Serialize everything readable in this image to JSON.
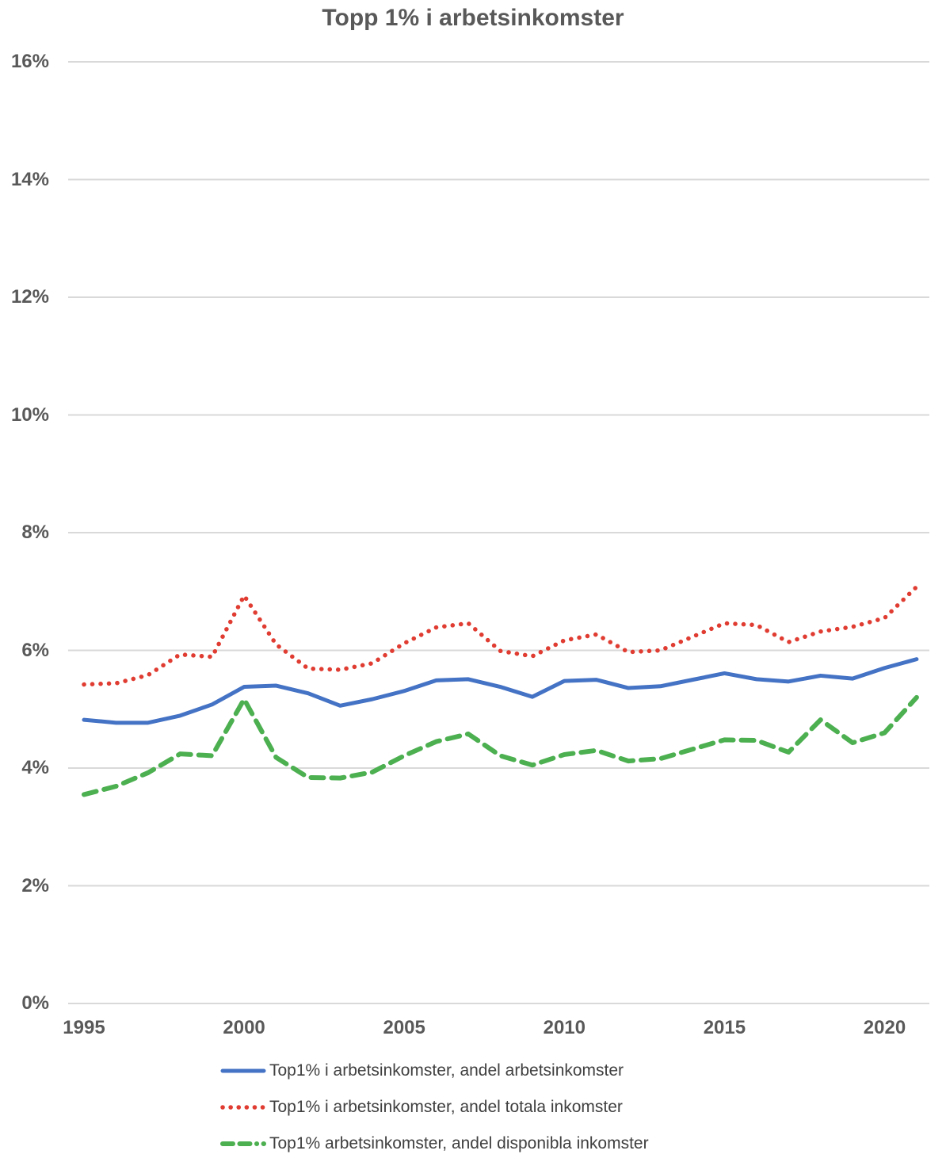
{
  "title": "Topp 1% i arbetsinkomster",
  "colors": {
    "series_blue": "#4472C4",
    "series_red": "#E03C31",
    "series_green": "#4CAF50",
    "grid": "#D9D9D9",
    "axis_text": "#595959",
    "legend_text": "#404040"
  },
  "chart_data": {
    "type": "line",
    "title": "Topp 1% i arbetsinkomster",
    "xlabel": "",
    "ylabel": "",
    "unit": "%",
    "xlim": [
      1995,
      2021
    ],
    "ylim": [
      0,
      16
    ],
    "grid": "horizontal",
    "legend_position": "bottom-left",
    "x": [
      1995,
      1996,
      1997,
      1998,
      1999,
      2000,
      2001,
      2002,
      2003,
      2004,
      2005,
      2006,
      2007,
      2008,
      2009,
      2010,
      2011,
      2012,
      2013,
      2014,
      2015,
      2016,
      2017,
      2018,
      2019,
      2020,
      2021
    ],
    "x_ticks": [
      {
        "label": "1995",
        "value": 1995
      },
      {
        "label": "2000",
        "value": 2000
      },
      {
        "label": "2005",
        "value": 2005
      },
      {
        "label": "2010",
        "value": 2010
      },
      {
        "label": "2015",
        "value": 2015
      },
      {
        "label": "2020",
        "value": 2020
      }
    ],
    "y_ticks": [
      {
        "label": "0%",
        "value": 0
      },
      {
        "label": "2%",
        "value": 2
      },
      {
        "label": "4%",
        "value": 4
      },
      {
        "label": "6%",
        "value": 6
      },
      {
        "label": "8%",
        "value": 8
      },
      {
        "label": "10%",
        "value": 10
      },
      {
        "label": "12%",
        "value": 12
      },
      {
        "label": "14%",
        "value": 14
      },
      {
        "label": "16%",
        "value": 16
      }
    ],
    "series": [
      {
        "name": "Top1% i arbetsinkomster, andel arbetsinkomster",
        "color": "#4472C4",
        "style": "solid",
        "values": [
          4.82,
          4.77,
          4.77,
          4.89,
          5.08,
          5.38,
          5.4,
          5.27,
          5.06,
          5.17,
          5.31,
          5.49,
          5.51,
          5.38,
          5.21,
          5.48,
          5.5,
          5.36,
          5.39,
          5.5,
          5.61,
          5.51,
          5.47,
          5.57,
          5.52,
          5.7,
          5.85
        ]
      },
      {
        "name": "Top1% i arbetsinkomster, andel totala inkomster",
        "color": "#E03C31",
        "style": "dotted",
        "values": [
          5.42,
          5.44,
          5.58,
          5.93,
          5.89,
          6.93,
          6.1,
          5.69,
          5.67,
          5.78,
          6.12,
          6.39,
          6.46,
          5.99,
          5.9,
          6.17,
          6.27,
          5.97,
          6.0,
          6.23,
          6.46,
          6.43,
          6.14,
          6.32,
          6.4,
          6.55,
          7.08
        ]
      },
      {
        "name": "Top1% arbetsinkomster, andel disponibla inkomster",
        "color": "#4CAF50",
        "style": "dashed",
        "values": [
          3.55,
          3.69,
          3.92,
          4.24,
          4.21,
          5.17,
          4.18,
          3.84,
          3.83,
          3.93,
          4.21,
          4.45,
          4.58,
          4.21,
          4.05,
          4.23,
          4.3,
          4.12,
          4.16,
          4.32,
          4.48,
          4.47,
          4.27,
          4.82,
          4.43,
          4.6,
          5.2
        ]
      }
    ]
  }
}
